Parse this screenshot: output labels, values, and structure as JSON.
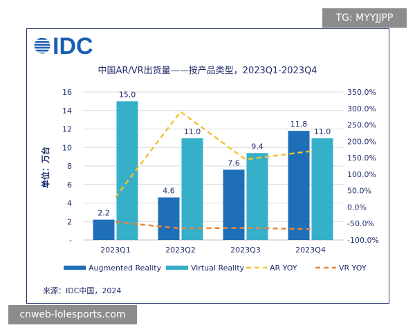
{
  "overlay": {
    "top_tag": "TG: MYYJJPP",
    "bottom_watermark": "cnweb-lolesports.com"
  },
  "logo": {
    "text": "IDC",
    "color": "#1a5fb4"
  },
  "source": "来源：IDC中国，2024",
  "chart_data": {
    "type": "bar",
    "title": "中国AR/VR出货量——按产品类型，2023Q1-2023Q4",
    "ylabel": "单位：万台",
    "categories": [
      "2023Q1",
      "2023Q2",
      "2023Q3",
      "2023Q4"
    ],
    "ylim": [
      0,
      16
    ],
    "yticks": [
      "-",
      "2",
      "4",
      "6",
      "8",
      "10",
      "12",
      "14",
      "16"
    ],
    "y2lim": [
      -100,
      350
    ],
    "y2ticks": [
      "-100.0%",
      "-50.0%",
      "0.0%",
      "50.0%",
      "100.0%",
      "150.0%",
      "200.0%",
      "250.0%",
      "300.0%",
      "350.0%"
    ],
    "series": [
      {
        "name": "Augmented Reality",
        "kind": "bar",
        "color": "#1f6fb8",
        "values": [
          2.2,
          4.6,
          7.6,
          11.8
        ],
        "labels": [
          "2.2",
          "4.6",
          "7.6",
          "11.8"
        ]
      },
      {
        "name": "Virtual Reality",
        "kind": "bar",
        "color": "#36afc9",
        "values": [
          15.0,
          11.0,
          9.4,
          11.0
        ],
        "labels": [
          "15.0",
          "11.0",
          "9.4",
          "11.0"
        ]
      },
      {
        "name": "AR YOY",
        "kind": "line",
        "axis": "right",
        "color": "#f2c32e",
        "values": [
          30,
          290,
          145,
          170
        ]
      },
      {
        "name": "VR YOY",
        "kind": "line",
        "axis": "right",
        "color": "#e8853a",
        "values": [
          -45,
          -65,
          -63,
          -67
        ]
      }
    ],
    "grid": true,
    "legend": "bottom"
  }
}
